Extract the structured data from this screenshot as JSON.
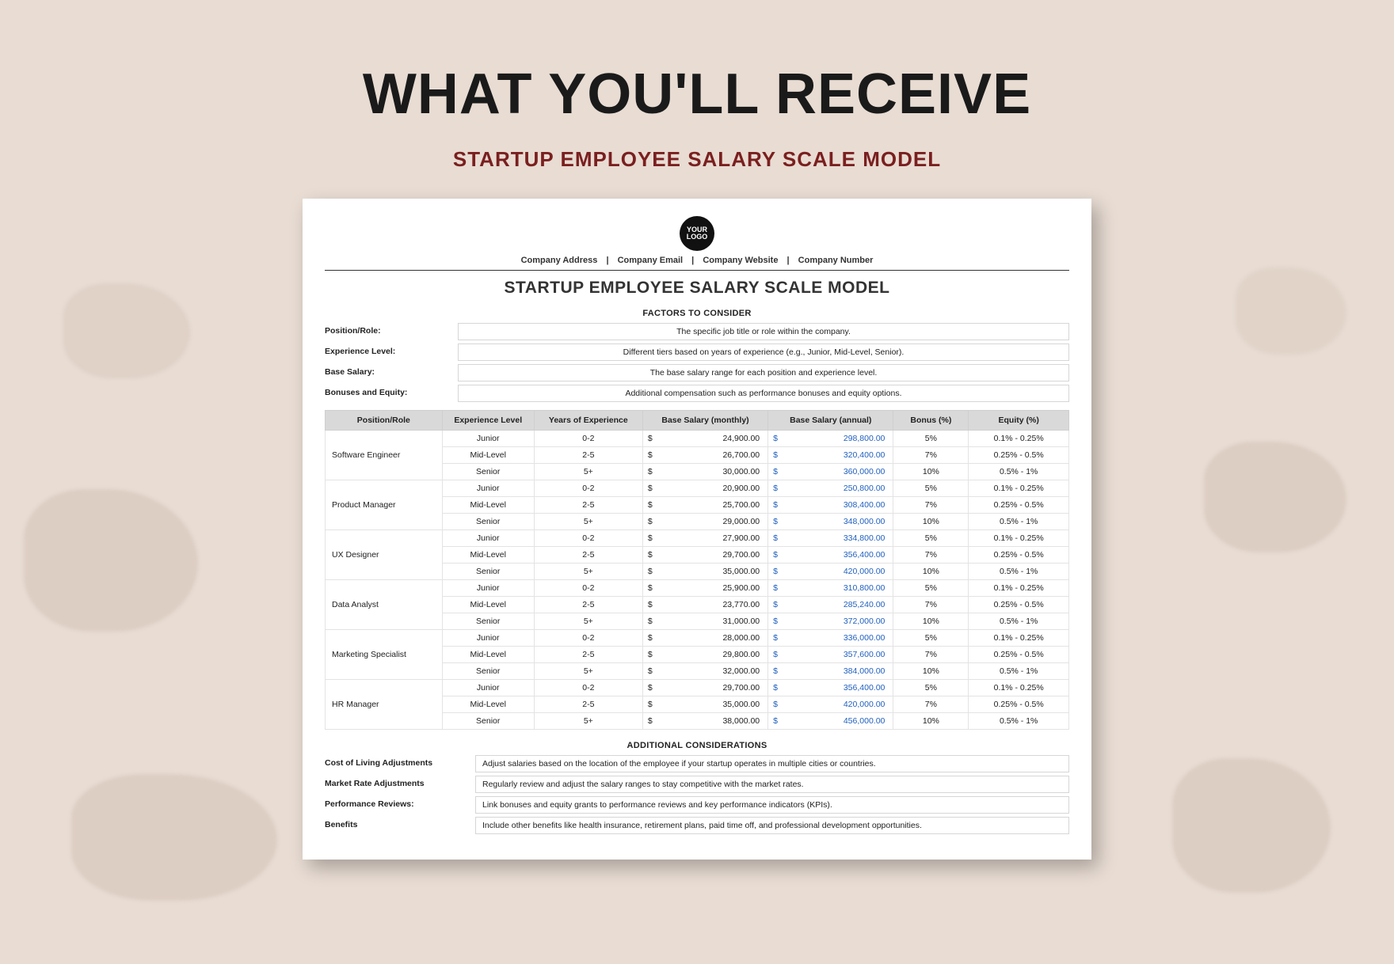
{
  "hero": {
    "title": "WHAT YOU'LL RECEIVE",
    "subtitle": "STARTUP EMPLOYEE SALARY SCALE MODEL"
  },
  "doc": {
    "logo_line1": "YOUR",
    "logo_line2": "LOGO",
    "meta": {
      "address": "Company Address",
      "email": "Company Email",
      "website": "Company Website",
      "number": "Company Number"
    },
    "title": "STARTUP EMPLOYEE SALARY SCALE MODEL",
    "factors_heading": "FACTORS TO CONSIDER",
    "factors": [
      {
        "label": "Position/Role:",
        "value": "The specific job title or role within the company."
      },
      {
        "label": "Experience Level:",
        "value": "Different tiers based on years of experience (e.g., Junior, Mid-Level, Senior)."
      },
      {
        "label": "Base Salary:",
        "value": "The base salary range for each position and experience level."
      },
      {
        "label": "Bonuses and Equity:",
        "value": "Additional compensation such as performance bonuses and equity options."
      }
    ],
    "table": {
      "headers": [
        "Position/Role",
        "Experience Level",
        "Years of Experience",
        "Base Salary (monthly)",
        "Base Salary (annual)",
        "Bonus (%)",
        "Equity (%)"
      ],
      "roles": [
        {
          "name": "Software Engineer",
          "rows": [
            {
              "level": "Junior",
              "yoe": "0-2",
              "monthly": "24,900.00",
              "annual": "298,800.00",
              "bonus": "5%",
              "equity": "0.1% - 0.25%"
            },
            {
              "level": "Mid-Level",
              "yoe": "2-5",
              "monthly": "26,700.00",
              "annual": "320,400.00",
              "bonus": "7%",
              "equity": "0.25% - 0.5%"
            },
            {
              "level": "Senior",
              "yoe": "5+",
              "monthly": "30,000.00",
              "annual": "360,000.00",
              "bonus": "10%",
              "equity": "0.5% - 1%"
            }
          ]
        },
        {
          "name": "Product Manager",
          "rows": [
            {
              "level": "Junior",
              "yoe": "0-2",
              "monthly": "20,900.00",
              "annual": "250,800.00",
              "bonus": "5%",
              "equity": "0.1% - 0.25%"
            },
            {
              "level": "Mid-Level",
              "yoe": "2-5",
              "monthly": "25,700.00",
              "annual": "308,400.00",
              "bonus": "7%",
              "equity": "0.25% - 0.5%"
            },
            {
              "level": "Senior",
              "yoe": "5+",
              "monthly": "29,000.00",
              "annual": "348,000.00",
              "bonus": "10%",
              "equity": "0.5% - 1%"
            }
          ]
        },
        {
          "name": "UX Designer",
          "rows": [
            {
              "level": "Junior",
              "yoe": "0-2",
              "monthly": "27,900.00",
              "annual": "334,800.00",
              "bonus": "5%",
              "equity": "0.1% - 0.25%"
            },
            {
              "level": "Mid-Level",
              "yoe": "2-5",
              "monthly": "29,700.00",
              "annual": "356,400.00",
              "bonus": "7%",
              "equity": "0.25% - 0.5%"
            },
            {
              "level": "Senior",
              "yoe": "5+",
              "monthly": "35,000.00",
              "annual": "420,000.00",
              "bonus": "10%",
              "equity": "0.5% - 1%"
            }
          ]
        },
        {
          "name": "Data Analyst",
          "rows": [
            {
              "level": "Junior",
              "yoe": "0-2",
              "monthly": "25,900.00",
              "annual": "310,800.00",
              "bonus": "5%",
              "equity": "0.1% - 0.25%"
            },
            {
              "level": "Mid-Level",
              "yoe": "2-5",
              "monthly": "23,770.00",
              "annual": "285,240.00",
              "bonus": "7%",
              "equity": "0.25% - 0.5%"
            },
            {
              "level": "Senior",
              "yoe": "5+",
              "monthly": "31,000.00",
              "annual": "372,000.00",
              "bonus": "10%",
              "equity": "0.5% - 1%"
            }
          ]
        },
        {
          "name": "Marketing Specialist",
          "rows": [
            {
              "level": "Junior",
              "yoe": "0-2",
              "monthly": "28,000.00",
              "annual": "336,000.00",
              "bonus": "5%",
              "equity": "0.1% - 0.25%"
            },
            {
              "level": "Mid-Level",
              "yoe": "2-5",
              "monthly": "29,800.00",
              "annual": "357,600.00",
              "bonus": "7%",
              "equity": "0.25% - 0.5%"
            },
            {
              "level": "Senior",
              "yoe": "5+",
              "monthly": "32,000.00",
              "annual": "384,000.00",
              "bonus": "10%",
              "equity": "0.5% - 1%"
            }
          ]
        },
        {
          "name": "HR Manager",
          "rows": [
            {
              "level": "Junior",
              "yoe": "0-2",
              "monthly": "29,700.00",
              "annual": "356,400.00",
              "bonus": "5%",
              "equity": "0.1% - 0.25%"
            },
            {
              "level": "Mid-Level",
              "yoe": "2-5",
              "monthly": "35,000.00",
              "annual": "420,000.00",
              "bonus": "7%",
              "equity": "0.25% - 0.5%"
            },
            {
              "level": "Senior",
              "yoe": "5+",
              "monthly": "38,000.00",
              "annual": "456,000.00",
              "bonus": "10%",
              "equity": "0.5% - 1%"
            }
          ]
        }
      ]
    },
    "additional_heading": "ADDITIONAL CONSIDERATIONS",
    "additional": [
      {
        "label": "Cost of Living Adjustments",
        "value": "Adjust salaries based on the location of the employee if your startup operates in multiple cities or countries."
      },
      {
        "label": "Market Rate Adjustments",
        "value": "Regularly review and adjust the salary ranges to stay competitive with the market rates."
      },
      {
        "label": "Performance Reviews:",
        "value": "Link bonuses and equity grants to performance reviews and key performance indicators (KPIs)."
      },
      {
        "label": "Benefits",
        "value": "Include other benefits like health insurance, retirement plans, paid time off, and professional development opportunities."
      }
    ]
  },
  "style": {
    "bg": "#e8dcd3",
    "accent": "#7a1f1f",
    "annual_color": "#1f5fbf",
    "header_bg": "#d9d9d9"
  }
}
